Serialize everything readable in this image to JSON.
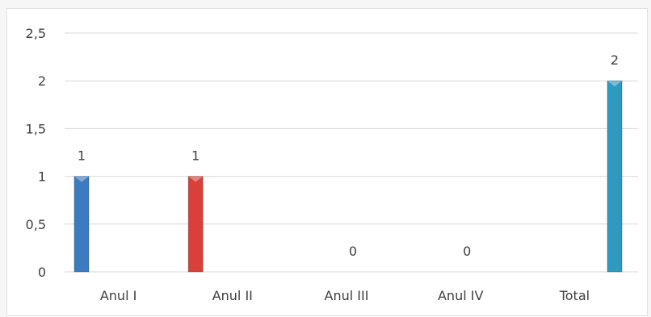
{
  "chart_data": {
    "type": "bar",
    "categories": [
      "Anul I",
      "Anul II",
      "Anul III",
      "Anul IV",
      "Total"
    ],
    "values": [
      1,
      1,
      0,
      0,
      2
    ],
    "data_labels": [
      "1",
      "1",
      "0",
      "0",
      "2"
    ],
    "y_ticks": [
      "0",
      "0,5",
      "1",
      "1,5",
      "2",
      "2,5"
    ],
    "ylim": [
      0,
      2.5
    ],
    "grid": true,
    "legend": "none",
    "colors": [
      "#3b7cc0",
      "#d9403a",
      "#7fb24a",
      "#8a5fb0",
      "#2f9ac0"
    ]
  }
}
